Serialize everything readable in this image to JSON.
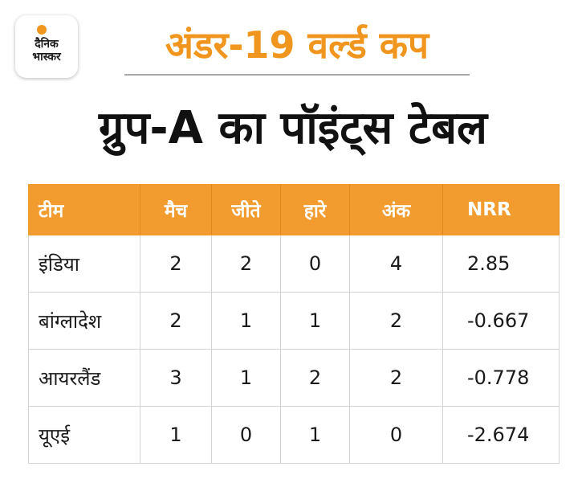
{
  "brand": {
    "logo_line1": "दैनिक",
    "logo_line2": "भास्कर",
    "accent_color": "#f0961e"
  },
  "kicker": "अंडर-19 वर्ल्ड कप",
  "headline": "ग्रुप-A का पॉइंट्स टेबल",
  "table": {
    "header_color": "#f29b2e",
    "columns": [
      "टीम",
      "मैच",
      "जीते",
      "हारे",
      "अंक",
      "NRR"
    ],
    "rows": [
      {
        "team": "इंडिया",
        "matches": "2",
        "won": "2",
        "lost": "0",
        "points": "4",
        "nrr": "2.85"
      },
      {
        "team": "बांग्लादेश",
        "matches": "2",
        "won": "1",
        "lost": "1",
        "points": "2",
        "nrr": "-0.667"
      },
      {
        "team": "आयरलैंड",
        "matches": "3",
        "won": "1",
        "lost": "2",
        "points": "2",
        "nrr": "-0.778"
      },
      {
        "team": "यूएई",
        "matches": "1",
        "won": "0",
        "lost": "1",
        "points": "0",
        "nrr": "-2.674"
      }
    ]
  }
}
